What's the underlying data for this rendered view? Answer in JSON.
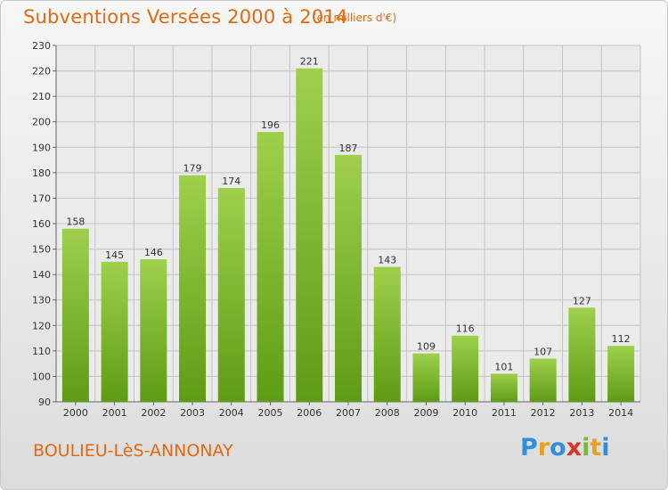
{
  "header": {
    "title": "Subventions Versées 2000 à 2014",
    "unit": "(en milliers d'€)"
  },
  "footer": {
    "commune": "BOULIEU-LèS-ANNONAY",
    "logo": [
      "P",
      "r",
      "o",
      "x",
      "i",
      "t",
      "i"
    ]
  },
  "colors": {
    "title": "#e06a12",
    "bar_top": "#9fd04c",
    "bar_bottom": "#5e9c14",
    "logo_letters": [
      "#2f8fdc",
      "#e8a020",
      "#2f8fdc",
      "#d8342a",
      "#7ab82e",
      "#e8a020",
      "#2f8fdc"
    ]
  },
  "chart_data": {
    "type": "bar",
    "categories": [
      "2000",
      "2001",
      "2002",
      "2003",
      "2004",
      "2005",
      "2006",
      "2007",
      "2008",
      "2009",
      "2010",
      "2011",
      "2012",
      "2013",
      "2014"
    ],
    "values": [
      158,
      145,
      146,
      179,
      174,
      196,
      221,
      187,
      143,
      109,
      116,
      101,
      107,
      127,
      112
    ],
    "ylim": [
      90,
      230
    ],
    "yticks": [
      90,
      100,
      110,
      120,
      130,
      140,
      150,
      160,
      170,
      180,
      190,
      200,
      210,
      220,
      230
    ],
    "grid": true,
    "data_labels": true
  }
}
